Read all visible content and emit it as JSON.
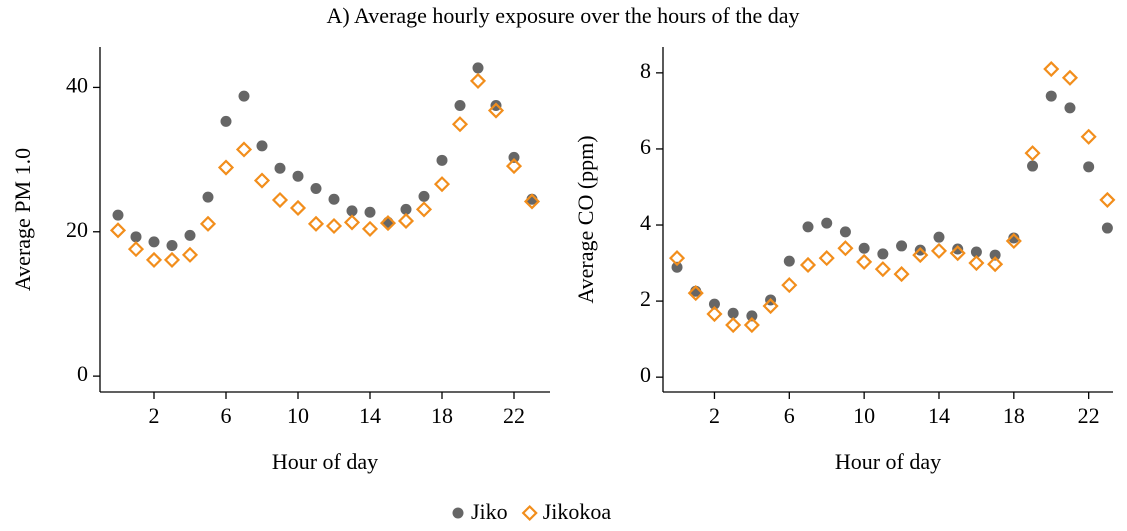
{
  "title": "A) Average hourly exposure over the hours of the day",
  "chart_data": [
    {
      "type": "scatter",
      "xlabel": "Hour of day",
      "ylabel": "Average PM 1.0",
      "x": [
        0,
        1,
        2,
        3,
        4,
        5,
        6,
        7,
        8,
        9,
        10,
        11,
        12,
        13,
        14,
        15,
        16,
        17,
        18,
        19,
        20,
        21,
        22,
        23
      ],
      "xlim": [
        -1,
        24
      ],
      "xticks": [
        2,
        6,
        10,
        14,
        18,
        22
      ],
      "ylim": [
        -2.2,
        45.6
      ],
      "yticks": [
        0,
        20,
        40
      ],
      "series": [
        {
          "name": "Jiko",
          "color": "#666666",
          "marker": "circle",
          "values": [
            22.3,
            19.3,
            18.6,
            18.1,
            19.5,
            24.8,
            35.3,
            38.8,
            31.9,
            28.8,
            27.7,
            26.0,
            24.5,
            22.9,
            22.7,
            21.3,
            23.1,
            24.9,
            29.9,
            37.5,
            42.7,
            37.5,
            30.3,
            24.5
          ]
        },
        {
          "name": "Jikokoa",
          "color": "#f28e1c",
          "marker": "diamond",
          "values": [
            20.2,
            17.6,
            16.1,
            16.1,
            16.8,
            21.1,
            28.9,
            31.4,
            27.1,
            24.4,
            23.3,
            21.1,
            20.8,
            21.3,
            20.4,
            21.2,
            21.5,
            23.1,
            26.6,
            34.9,
            40.9,
            36.8,
            29.1,
            24.2
          ]
        }
      ]
    },
    {
      "type": "scatter",
      "xlabel": "Hour of day",
      "ylabel": "Average CO (ppm)",
      "x": [
        0,
        1,
        2,
        3,
        4,
        5,
        6,
        7,
        8,
        9,
        10,
        11,
        12,
        13,
        14,
        15,
        16,
        17,
        18,
        19,
        20,
        21,
        22,
        23
      ],
      "xlim": [
        -0.75,
        23.3
      ],
      "xticks": [
        2,
        6,
        10,
        14,
        18,
        22
      ],
      "ylim": [
        -0.39,
        8.68
      ],
      "yticks": [
        0,
        2,
        4,
        6,
        8
      ],
      "series": [
        {
          "name": "Jiko",
          "color": "#666666",
          "marker": "circle",
          "values": [
            2.89,
            2.26,
            1.92,
            1.68,
            1.61,
            2.03,
            3.05,
            3.95,
            4.05,
            3.82,
            3.39,
            3.24,
            3.45,
            3.34,
            3.68,
            3.37,
            3.29,
            3.21,
            3.66,
            5.55,
            7.39,
            7.08,
            5.53,
            3.92
          ]
        },
        {
          "name": "Jikokoa",
          "color": "#f28e1c",
          "marker": "diamond",
          "values": [
            3.13,
            2.21,
            1.66,
            1.37,
            1.37,
            1.87,
            2.42,
            2.95,
            3.13,
            3.39,
            3.03,
            2.84,
            2.71,
            3.21,
            3.32,
            3.26,
            3.0,
            2.97,
            3.58,
            5.89,
            8.1,
            7.87,
            6.32,
            4.66
          ]
        }
      ]
    }
  ]
}
